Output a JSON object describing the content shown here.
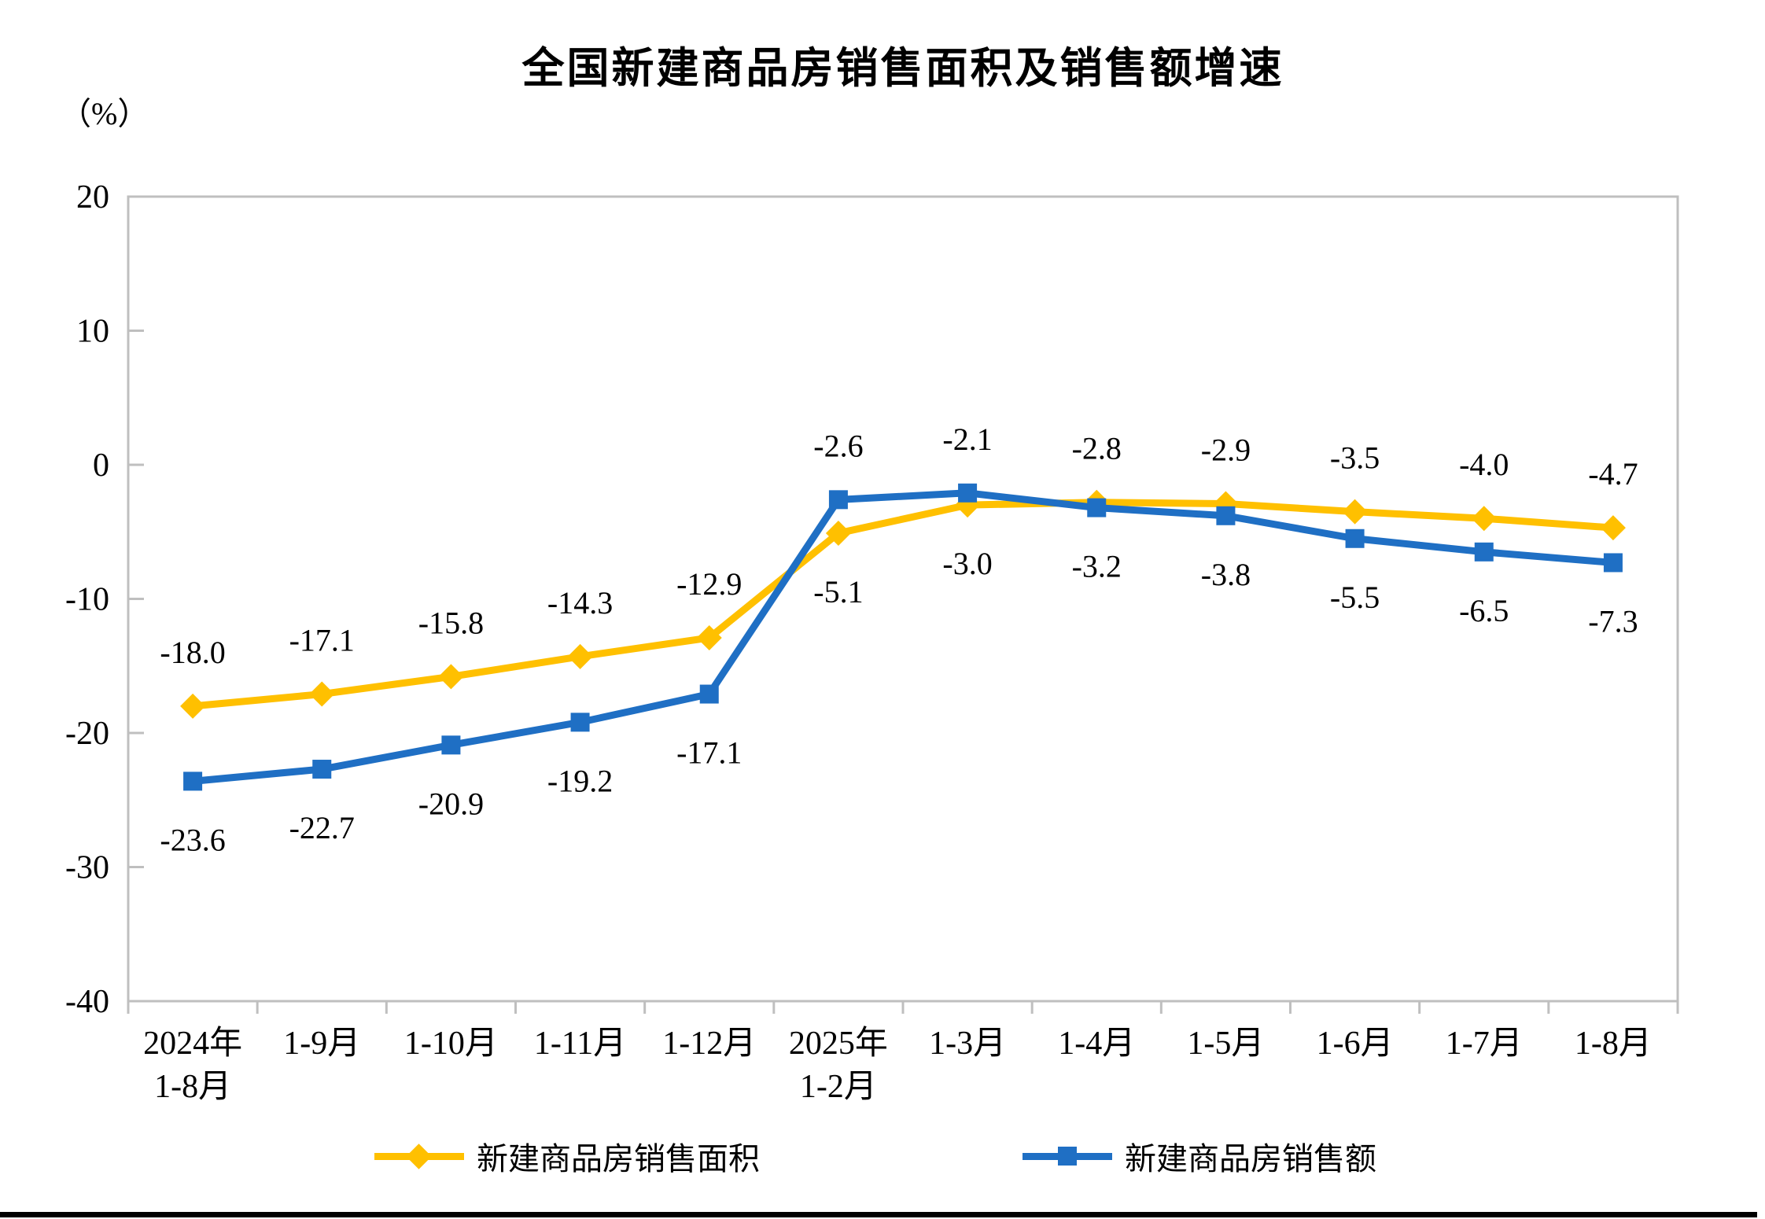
{
  "page": {
    "background": "#ffffff",
    "window_border_color": "#000000"
  },
  "chart_data": {
    "type": "line",
    "title": "全国新建商品房销售面积及销售额增速",
    "unit_label": "（%）",
    "categories": [
      "2024年\n1-8月",
      "1-9月",
      "1-10月",
      "1-11月",
      "1-12月",
      "2025年\n1-2月",
      "1-3月",
      "1-4月",
      "1-5月",
      "1-6月",
      "1-7月",
      "1-8月"
    ],
    "y_axis": {
      "min": -40,
      "max": 20,
      "tick_step": 10,
      "ticks": [
        20,
        10,
        0,
        -10,
        -20,
        -30,
        -40
      ]
    },
    "grid": false,
    "legend_position": "bottom",
    "axis_color": "#BFBFBF",
    "text_color": "#000000",
    "label_decimals": 1,
    "series": [
      {
        "name": "新建商品房销售面积",
        "color": "#FFC000",
        "marker": "diamond",
        "values": [
          -18.0,
          -17.1,
          -15.8,
          -14.3,
          -12.9,
          -5.1,
          -3.0,
          -2.8,
          -2.9,
          -3.5,
          -4.0,
          -4.7
        ]
      },
      {
        "name": "新建商品房销售额",
        "color": "#1F6FC4",
        "marker": "square",
        "values": [
          -23.6,
          -22.7,
          -20.9,
          -19.2,
          -17.1,
          -2.6,
          -2.1,
          -3.2,
          -3.8,
          -5.5,
          -6.5,
          -7.3
        ]
      }
    ]
  }
}
